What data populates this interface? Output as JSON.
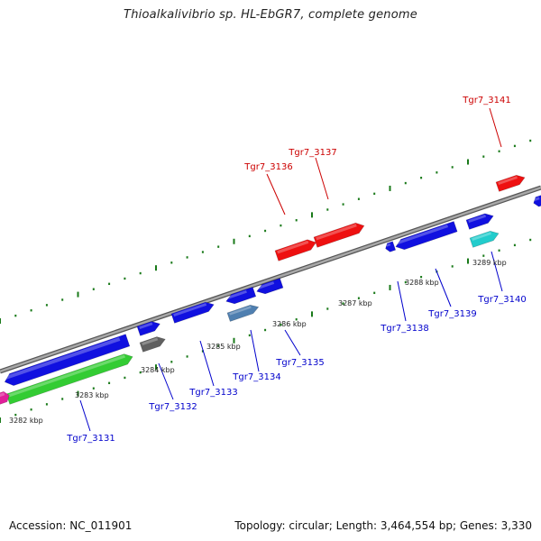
{
  "title": "Thioalkalivibrio sp. HL-EbGR7, complete genome",
  "footer": {
    "accession": "Accession: NC_011901",
    "topology": "Topology: circular; Length: 3,464,554 bp; Genes: 3,330"
  },
  "colors": {
    "backbone": "#8a8a8a",
    "tick": "#1a7a1a",
    "label_red": "#cc0000",
    "label_blue": "#0000cc",
    "gene_blue": "#1010e0",
    "gene_red": "#ee1010",
    "gene_green": "#33cc33",
    "gene_cyan": "#22cccc",
    "gene_gray": "#606060",
    "gene_steel": "#4f7fb0",
    "gene_magenta": "#e0209a"
  },
  "kbp_labels": [
    {
      "text": "3282 kbp"
    },
    {
      "text": "3283 kbp"
    },
    {
      "text": "3284 kbp"
    },
    {
      "text": "3285 kbp"
    },
    {
      "text": "3286 kbp"
    },
    {
      "text": "3287 kbp"
    },
    {
      "text": "3288 kbp"
    },
    {
      "text": "3289 kbp"
    }
  ],
  "gene_labels": [
    {
      "text": "Tgr7_3141",
      "color": "red"
    },
    {
      "text": "Tgr7_3137",
      "color": "red"
    },
    {
      "text": "Tgr7_3136",
      "color": "red"
    },
    {
      "text": "Tgr7_3131",
      "color": "blue"
    },
    {
      "text": "Tgr7_3132",
      "color": "blue"
    },
    {
      "text": "Tgr7_3133",
      "color": "blue"
    },
    {
      "text": "Tgr7_3134",
      "color": "blue"
    },
    {
      "text": "Tgr7_3135",
      "color": "blue"
    },
    {
      "text": "Tgr7_3138",
      "color": "blue"
    },
    {
      "text": "Tgr7_3139",
      "color": "blue"
    },
    {
      "text": "Tgr7_3140",
      "color": "blue"
    }
  ]
}
